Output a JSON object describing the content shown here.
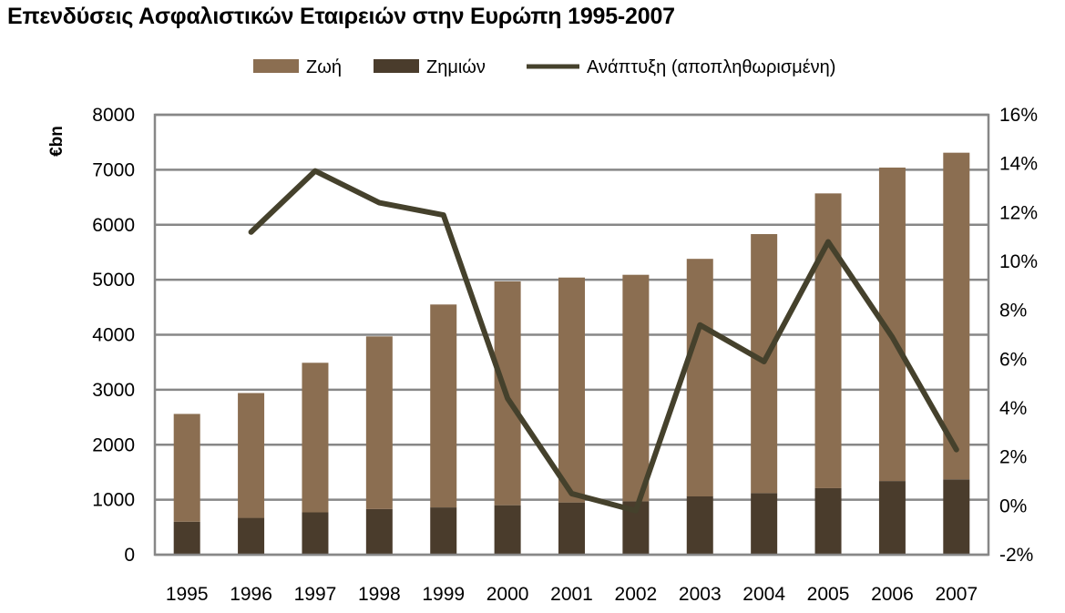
{
  "chart_data": {
    "type": "bar",
    "stacked": true,
    "title": "Επενδύσεις Ασφαλιστικών Εταιρειών στην Ευρώπη 1995-2007",
    "ylabel": "€bn",
    "categories": [
      "1995",
      "1996",
      "1997",
      "1998",
      "1999",
      "2000",
      "2001",
      "2002",
      "2003",
      "2004",
      "2005",
      "2006",
      "2007"
    ],
    "ylim": [
      0,
      8000
    ],
    "yticks": [
      0,
      1000,
      2000,
      3000,
      4000,
      5000,
      6000,
      7000,
      8000
    ],
    "y2lim": [
      -2,
      16
    ],
    "y2ticks": [
      -2,
      0,
      2,
      4,
      6,
      8,
      10,
      12,
      14,
      16
    ],
    "y2tick_suffix": "%",
    "grid": true,
    "legend_position": "top",
    "series": [
      {
        "name": "Ζημιών",
        "kind": "bar",
        "axis": "left",
        "color": "#4a3c2c",
        "values": [
          600,
          670,
          770,
          830,
          860,
          900,
          950,
          970,
          1060,
          1120,
          1210,
          1340,
          1370
        ]
      },
      {
        "name": "Ζωή",
        "kind": "bar",
        "axis": "left",
        "color": "#8b6e51",
        "values": [
          1960,
          2270,
          2720,
          3140,
          3690,
          4070,
          4090,
          4120,
          4320,
          4710,
          5360,
          5700,
          5940
        ]
      },
      {
        "name": "Ανάπτυξη (αποπληθωρισμένη)",
        "kind": "line",
        "axis": "right",
        "color": "#45412c",
        "values": [
          null,
          11.2,
          13.7,
          12.4,
          11.9,
          4.4,
          0.5,
          -0.2,
          7.4,
          5.9,
          10.8,
          6.9,
          2.3
        ]
      }
    ],
    "legend_order": [
      "Ζωή",
      "Ζημιών",
      "Ανάπτυξη (αποπληθωρισμένη)"
    ]
  }
}
